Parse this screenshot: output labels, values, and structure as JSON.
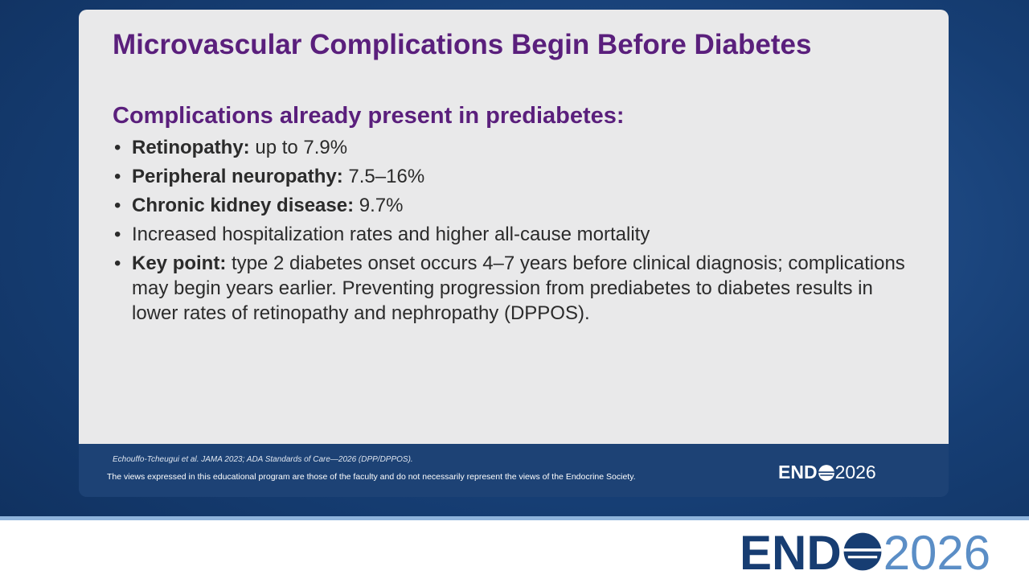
{
  "slide": {
    "title": "Microvascular Complications Begin Before Diabetes",
    "heading": "Complications already present in prediabetes:",
    "bullets": [
      {
        "lead": "Retinopathy:",
        "text": "up to 7.9%"
      },
      {
        "lead": "Peripheral neuropathy:",
        "text": "7.5–16%"
      },
      {
        "lead": "Chronic kidney disease:",
        "text": "9.7%"
      },
      {
        "text": "Increased hospitalization rates and higher all-cause mortality"
      },
      {
        "lead": "Key point:",
        "text": "type 2 diabetes onset occurs 4–7 years before clinical diagnosis; complications may begin years earlier. Preventing progression from prediabetes to diabetes results in lower rates of retinopathy and nephropathy (DPPOS)."
      }
    ],
    "citation": "Echouffo-Tcheugui et al. JAMA 2023; ADA Standards of Care—2026 (DPP/DPPOS).",
    "disclaimer": "The views expressed in this educational program are those of the faculty and do not necessarily represent the views of the Endocrine Society.",
    "logo": {
      "left": "END",
      "right": "2026"
    }
  }
}
